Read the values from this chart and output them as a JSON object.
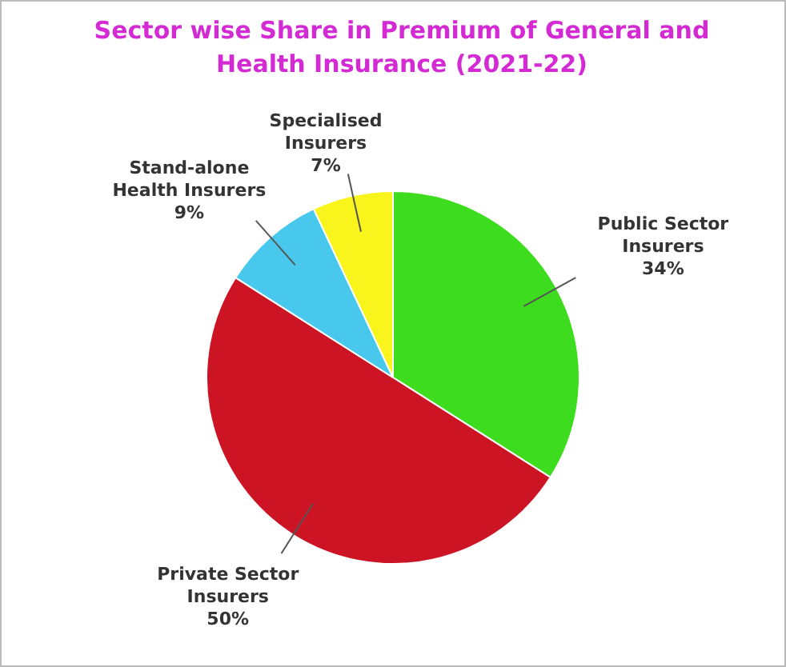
{
  "chart_data": {
    "type": "pie",
    "title": "Sector wise Share in Premium of General and Health Insurance (2021-22)",
    "categories": [
      "Public Sector Insurers",
      "Private Sector Insurers",
      "Stand-alone Health Insurers",
      "Specialised Insurers"
    ],
    "values": [
      34,
      50,
      9,
      7
    ],
    "value_labels": [
      "34%",
      "50%",
      "9%",
      "7%"
    ],
    "colors": [
      "#3ddc1e",
      "#cc1424",
      "#48c8ec",
      "#f8f41c"
    ]
  }
}
